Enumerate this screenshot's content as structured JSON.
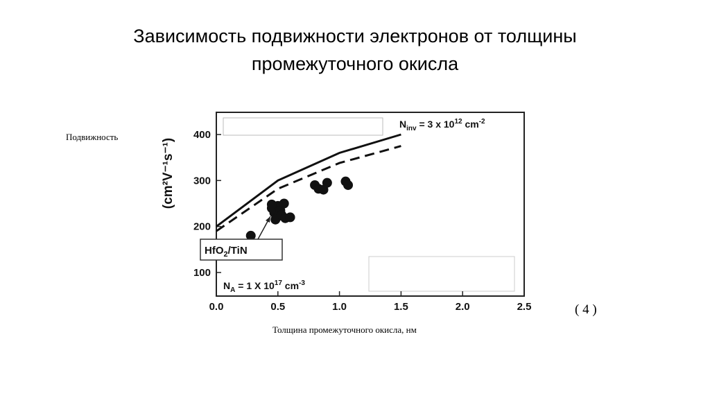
{
  "title_lines": [
    "Зависимость подвижности электронов от толщины",
    "промежуточного окисла"
  ],
  "ylabel_ru": "Подвижность",
  "xlabel_ru": "Толщина промежуточного окисла, нм",
  "figure_number": "( 4 )",
  "chart_data": {
    "type": "line",
    "title": "",
    "ylabel": "(cm²V⁻¹s⁻¹)",
    "xlim": [
      0.0,
      2.5
    ],
    "ylim": [
      100,
      400
    ],
    "x_ticks": [
      "0.0",
      "0.5",
      "1.0",
      "1.5",
      "2.0",
      "2.5"
    ],
    "y_ticks": [
      "100",
      "200",
      "300",
      "400"
    ],
    "x_tick_values": [
      0.0,
      0.5,
      1.0,
      1.5,
      2.0,
      2.5
    ],
    "y_tick_values": [
      100,
      200,
      300,
      400
    ],
    "grid": false,
    "series": [
      {
        "style": "solid",
        "x": [
          0.0,
          0.5,
          1.0,
          1.5
        ],
        "y": [
          200,
          300,
          360,
          400
        ]
      },
      {
        "style": "dashed",
        "x": [
          0.0,
          0.5,
          1.0,
          1.5
        ],
        "y": [
          190,
          282,
          338,
          375
        ]
      },
      {
        "style": "scatter",
        "x": [
          0.28,
          0.45,
          0.47,
          0.5,
          0.52,
          0.55,
          0.5,
          0.48,
          0.53,
          0.56,
          0.6,
          0.45,
          0.8,
          0.83,
          0.87,
          0.9,
          1.05,
          1.07
        ],
        "y": [
          180,
          240,
          230,
          245,
          235,
          250,
          222,
          215,
          225,
          218,
          220,
          248,
          290,
          282,
          280,
          295,
          298,
          290
        ]
      }
    ],
    "annotations": {
      "ninv_label": "N",
      "ninv_sub": "inv",
      "ninv_value": " = 3 x 10",
      "ninv_exp": "12",
      "ninv_unit": " cm",
      "ninv_unit_exp": "-2",
      "material_label": "HfO",
      "material_sub": "2",
      "material_rest": "/TiN",
      "na_label": "N",
      "na_sub": "A",
      "na_value": " = 1 X 10",
      "na_exp": "17",
      "na_unit": " cm",
      "na_unit_exp": "-3"
    }
  }
}
